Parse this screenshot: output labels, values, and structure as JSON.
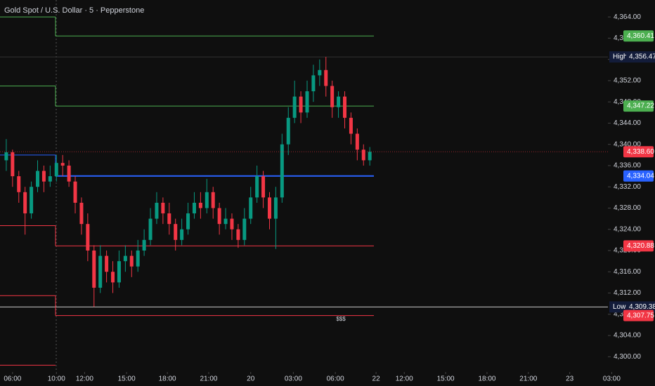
{
  "chart_data": {
    "type": "candlestick",
    "title": "Gold Spot / U.S. Dollar · 5 · Pepperstone",
    "up_color": "#089981",
    "down_color": "#f23645",
    "xlim": [
      -1,
      97
    ],
    "ylim": [
      4297,
      4366
    ],
    "xticks": [
      {
        "value": 1,
        "label": "06:00"
      },
      {
        "value": 8,
        "label": "10:00"
      },
      {
        "value": 12.5,
        "label": "12:00"
      },
      {
        "value": 19.2,
        "label": "15:00"
      },
      {
        "value": 25.7,
        "label": "18:00"
      },
      {
        "value": 32.3,
        "label": "21:00"
      },
      {
        "value": 39,
        "label": "20"
      },
      {
        "value": 45.8,
        "label": "03:00"
      },
      {
        "value": 52.5,
        "label": "06:00"
      },
      {
        "value": 59,
        "label": "22"
      },
      {
        "value": 63.5,
        "label": "12:00"
      },
      {
        "value": 70.1,
        "label": "15:00"
      },
      {
        "value": 76.7,
        "label": "18:00"
      },
      {
        "value": 83.3,
        "label": "21:00"
      },
      {
        "value": 89.9,
        "label": "23"
      },
      {
        "value": 96.6,
        "label": "03:00"
      }
    ],
    "yticks": [
      {
        "value": 4364,
        "label": "4,364.00"
      },
      {
        "value": 4360,
        "label": "4,360.00"
      },
      {
        "value": 4356,
        "label": "4,356.00"
      },
      {
        "value": 4352,
        "label": "4,352.00"
      },
      {
        "value": 4348,
        "label": "4,348.00"
      },
      {
        "value": 4344,
        "label": "4,344.00"
      },
      {
        "value": 4340,
        "label": "4,340.00"
      },
      {
        "value": 4336,
        "label": "4,336.00"
      },
      {
        "value": 4332,
        "label": "4,332.00"
      },
      {
        "value": 4328,
        "label": "4,328.00"
      },
      {
        "value": 4324,
        "label": "4,324.00"
      },
      {
        "value": 4320,
        "label": "4,320.00"
      },
      {
        "value": 4316,
        "label": "4,316.00"
      },
      {
        "value": 4312,
        "label": "4,312.00"
      },
      {
        "value": 4308,
        "label": "4,308.00"
      },
      {
        "value": 4304,
        "label": "4,304.00"
      },
      {
        "value": 4300,
        "label": "4,300.00"
      }
    ],
    "ohlc": [
      [
        4337,
        4341,
        4335,
        4338.5
      ],
      [
        4338.5,
        4339,
        4332,
        4334
      ],
      [
        4334,
        4335,
        4329,
        4331
      ],
      [
        4331,
        4332,
        4323,
        4327
      ],
      [
        4327,
        4333,
        4326,
        4332
      ],
      [
        4332,
        4337,
        4331,
        4335
      ],
      [
        4335,
        4336,
        4331,
        4333
      ],
      [
        4333,
        4336,
        4332,
        4334
      ],
      [
        4334,
        4338,
        4333,
        4336.5
      ],
      [
        4336.5,
        4338,
        4334,
        4336
      ],
      [
        4336,
        4337,
        4332,
        4333
      ],
      [
        4333,
        4334,
        4327,
        4329
      ],
      [
        4329,
        4330,
        4323,
        4325
      ],
      [
        4325,
        4327,
        4318,
        4320
      ],
      [
        4320,
        4321,
        4309.4,
        4313
      ],
      [
        4313,
        4321,
        4312,
        4319
      ],
      [
        4319,
        4320,
        4314,
        4316
      ],
      [
        4316,
        4318,
        4312,
        4314
      ],
      [
        4314,
        4320,
        4313,
        4318
      ],
      [
        4318,
        4321,
        4316,
        4319
      ],
      [
        4319,
        4320,
        4315,
        4317
      ],
      [
        4317,
        4322,
        4316,
        4320
      ],
      [
        4320,
        4324,
        4319,
        4322
      ],
      [
        4322,
        4328,
        4321,
        4326
      ],
      [
        4326,
        4331,
        4325,
        4329
      ],
      [
        4329,
        4330,
        4325,
        4327
      ],
      [
        4327,
        4329,
        4323,
        4325
      ],
      [
        4325,
        4326,
        4320,
        4322
      ],
      [
        4322,
        4326,
        4321,
        4324
      ],
      [
        4324,
        4329,
        4323,
        4327
      ],
      [
        4327,
        4331,
        4326,
        4329
      ],
      [
        4329,
        4331,
        4326,
        4328
      ],
      [
        4328,
        4333.5,
        4327,
        4331
      ],
      [
        4331,
        4332,
        4326,
        4328
      ],
      [
        4328,
        4329,
        4323,
        4325
      ],
      [
        4325,
        4328,
        4324,
        4326
      ],
      [
        4326,
        4327,
        4322,
        4324
      ],
      [
        4324,
        4325,
        4320.5,
        4322
      ],
      [
        4322,
        4328,
        4321,
        4326
      ],
      [
        4326,
        4332,
        4325,
        4330
      ],
      [
        4330,
        4336,
        4329,
        4334
      ],
      [
        4334,
        4335,
        4328,
        4330
      ],
      [
        4330,
        4331,
        4324,
        4326
      ],
      [
        4326,
        4332,
        4320.3,
        4330
      ],
      [
        4330,
        4342,
        4329,
        4340
      ],
      [
        4340,
        4347,
        4338,
        4345
      ],
      [
        4345,
        4352,
        4344,
        4349
      ],
      [
        4349,
        4350,
        4344,
        4346
      ],
      [
        4346,
        4352,
        4345,
        4350
      ],
      [
        4350,
        4355,
        4348,
        4353
      ],
      [
        4353,
        4356,
        4351,
        4354
      ],
      [
        4354,
        4356.47,
        4349,
        4351
      ],
      [
        4351,
        4352,
        4345,
        4347
      ],
      [
        4347,
        4350,
        4345,
        4349
      ],
      [
        4349,
        4350,
        4343,
        4345
      ],
      [
        4345,
        4346,
        4340,
        4342
      ],
      [
        4342,
        4343,
        4337,
        4339
      ],
      [
        4339,
        4340,
        4336,
        4337
      ],
      [
        4337,
        4339.5,
        4336,
        4338.6
      ]
    ],
    "levels": [
      {
        "color": "#4caf50",
        "values": [
          4364,
          4360.41
        ],
        "value_label": "4,360.41"
      },
      {
        "color": "#4caf50",
        "values": [
          4351,
          4347.22
        ],
        "value_label": "4,347.22"
      },
      {
        "color": "#2962ff",
        "values": [
          4338,
          4334.04
        ],
        "value_label": "4,334.04"
      },
      {
        "color": "#f23645",
        "values": [
          4324.7,
          4320.88
        ],
        "value_label": "4,320.88"
      },
      {
        "color": "#f23645",
        "values": [
          4311.5,
          4307.75
        ],
        "value_label": "4,307.75"
      },
      {
        "color": "#f23645",
        "values": [
          4298.4,
          null
        ]
      }
    ],
    "high": {
      "label": "High",
      "value": 4356.47,
      "value_label": "4,356.47"
    },
    "low": {
      "label": "Low",
      "value": 4309.38,
      "value_label": "4,309.38"
    },
    "last": {
      "value": 4338.6,
      "value_label": "4,338.60",
      "color": "#f23645"
    },
    "annotation": "$$$"
  }
}
